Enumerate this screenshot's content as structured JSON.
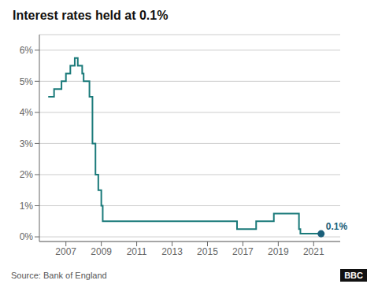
{
  "chart_data": {
    "type": "line",
    "title": "Interest rates held at 0.1%",
    "source": "Source: Bank of England",
    "logo": "BBC",
    "grid": "y",
    "xlim": [
      2005.5,
      2022.5
    ],
    "xticks": [
      2007,
      2009,
      2011,
      2013,
      2015,
      2017,
      2019,
      2021
    ],
    "ylim": [
      -0.15,
      6.5
    ],
    "yticks": [
      {
        "value": 0,
        "label": "0%"
      },
      {
        "value": 1,
        "label": "1%"
      },
      {
        "value": 2,
        "label": "2%"
      },
      {
        "value": 3,
        "label": "3%"
      },
      {
        "value": 4,
        "label": "4%"
      },
      {
        "value": 5,
        "label": "5%"
      },
      {
        "value": 6,
        "label": "6%"
      }
    ],
    "series": [
      {
        "type": "line",
        "line_style": "step",
        "color": "#1a7a7a",
        "x": [
          2006.0,
          2006.33,
          2006.75,
          2007.0,
          2007.25,
          2007.5,
          2007.67,
          2007.92,
          2008.0,
          2008.33,
          2008.5,
          2008.67,
          2008.83,
          2009.0,
          2009.08,
          2016.67,
          2017.75,
          2018.75,
          2020.17,
          2020.25,
          2021.42
        ],
        "values": [
          4.5,
          4.75,
          5.0,
          5.25,
          5.5,
          5.75,
          5.5,
          5.25,
          5.0,
          4.5,
          3.0,
          2.0,
          1.5,
          1.0,
          0.5,
          0.25,
          0.5,
          0.75,
          0.25,
          0.1,
          0.1
        ]
      },
      {
        "type": "scatter",
        "marker": "circle",
        "color": "#1a5f7a",
        "x": [
          2021.42
        ],
        "values": [
          0.1
        ]
      }
    ],
    "annotations": [
      {
        "text": "0.1%",
        "x": 2021.42,
        "y": 0.1,
        "color": "#1a5f7a"
      }
    ]
  }
}
